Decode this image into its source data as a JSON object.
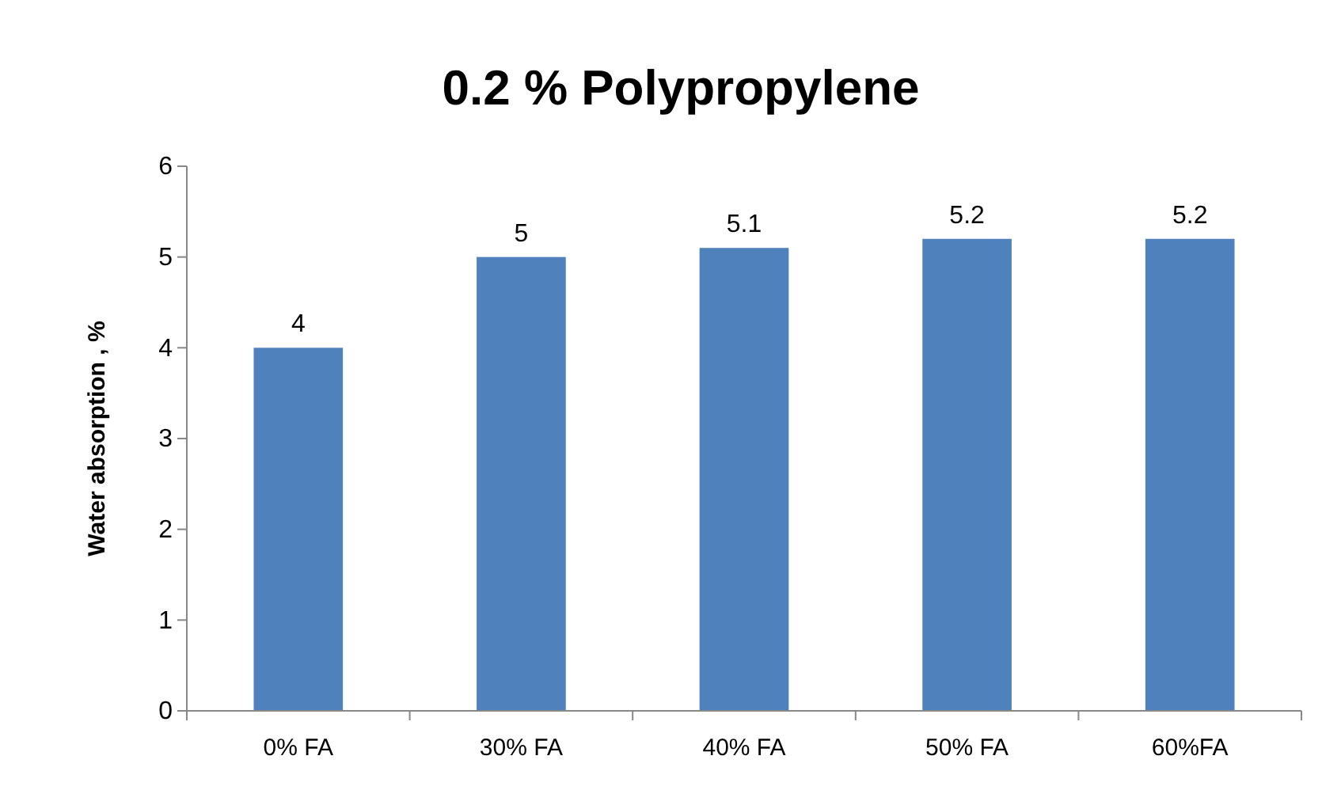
{
  "chart_data": {
    "type": "bar",
    "title": "0.2 % Polypropylene",
    "ylabel": "Water absorption , %",
    "categories": [
      "0% FA",
      "30% FA",
      "40% FA",
      "50% FA",
      "60%FA"
    ],
    "values": [
      4,
      5,
      5.1,
      5.2,
      5.2
    ],
    "color": "#4f81bd",
    "ylim": [
      0,
      6
    ],
    "yticks": [
      0,
      1,
      2,
      3,
      4,
      5,
      6
    ],
    "grid": false,
    "data_labels": true
  }
}
